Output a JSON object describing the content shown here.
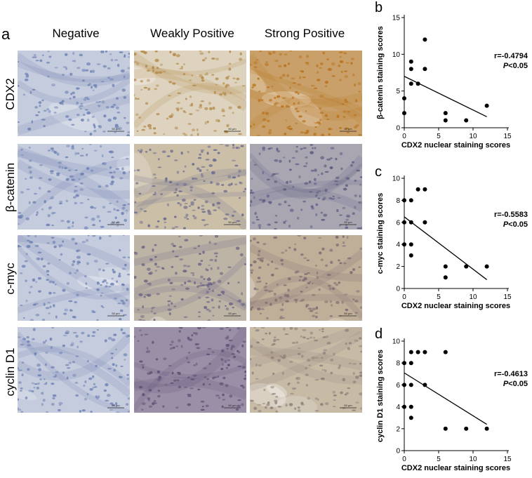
{
  "panel_a": {
    "letter": "a",
    "columns": [
      "Negative",
      "Weakly Positive",
      "Strong Positive"
    ],
    "rows": [
      "CDX2",
      "β-catenin",
      "c-myc",
      "cyclin D1"
    ],
    "scale_label": "50 μm",
    "colors": {
      "negative_bg": "#c5ccdd",
      "negative_nuc": "#6e82b4",
      "cdx2_weak_bg": "#ddd3bf",
      "cdx2_weak_nuc": "#b58a4a",
      "cdx2_strong_bg": "#c9a06a",
      "cdx2_strong_nuc": "#b9741d",
      "bcat_weak_bg": "#cbbfa8",
      "bcat_weak_nuc": "#6a6a90",
      "bcat_strong_bg": "#a9a6b2",
      "bcat_strong_nuc": "#5f5d82",
      "cmyc_weak_bg": "#beb4a6",
      "cmyc_weak_nuc": "#6a6484",
      "cmyc_strong_bg": "#bfae98",
      "cmyc_strong_nuc": "#7a6a70",
      "cyc_weak_bg": "#9a8fa6",
      "cyc_weak_nuc": "#5c4f74",
      "cyc_strong_bg": "#c7bba6",
      "cyc_strong_nuc": "#8e7f7a"
    }
  },
  "chart_data": [
    {
      "type": "scatter",
      "letter": "b",
      "xlabel": "CDX2 nuclear staining scores",
      "ylabel": "β-catenin staining scores",
      "xlim": [
        0,
        15
      ],
      "ylim": [
        0,
        15
      ],
      "xticks": [
        0,
        5,
        10,
        15
      ],
      "yticks": [
        0,
        5,
        10,
        15
      ],
      "points": [
        [
          0,
          4
        ],
        [
          0,
          2
        ],
        [
          1,
          9
        ],
        [
          1,
          8
        ],
        [
          1,
          6
        ],
        [
          2,
          6
        ],
        [
          3,
          12
        ],
        [
          3,
          8
        ],
        [
          6,
          2
        ],
        [
          6,
          1
        ],
        [
          9,
          1
        ],
        [
          12,
          3
        ]
      ],
      "fit_line": [
        [
          0,
          7.0
        ],
        [
          12,
          1.5
        ]
      ],
      "r_text": "r=-0.4794",
      "p_prefix": "P",
      "p_rest": "<0.05"
    },
    {
      "type": "scatter",
      "letter": "c",
      "xlabel": "CDX2 nuclear staining scores",
      "ylabel": "c-myc staining scores",
      "xlim": [
        0,
        15
      ],
      "ylim": [
        0,
        10
      ],
      "xticks": [
        0,
        5,
        10,
        15
      ],
      "yticks": [
        0,
        2,
        4,
        6,
        8,
        10
      ],
      "points": [
        [
          0,
          8
        ],
        [
          0,
          6
        ],
        [
          0,
          4
        ],
        [
          1,
          8
        ],
        [
          1,
          6
        ],
        [
          1,
          4
        ],
        [
          1,
          3
        ],
        [
          2,
          9
        ],
        [
          3,
          9
        ],
        [
          3,
          6
        ],
        [
          6,
          2
        ],
        [
          6,
          1
        ],
        [
          9,
          2
        ],
        [
          12,
          2
        ]
      ],
      "fit_line": [
        [
          0,
          6.5
        ],
        [
          12,
          0.8
        ]
      ],
      "r_text": "r=-0.5583",
      "p_prefix": "P",
      "p_rest": "<0.05"
    },
    {
      "type": "scatter",
      "letter": "d",
      "xlabel": "CDX2 nuclear staining scores",
      "ylabel": "cyclin D1 staining scores",
      "xlim": [
        0,
        15
      ],
      "ylim": [
        0,
        10
      ],
      "xticks": [
        0,
        5,
        10,
        15
      ],
      "yticks": [
        0,
        2,
        4,
        6,
        8,
        10
      ],
      "points": [
        [
          0,
          8
        ],
        [
          0,
          6
        ],
        [
          0,
          4
        ],
        [
          1,
          9
        ],
        [
          1,
          8
        ],
        [
          1,
          6
        ],
        [
          1,
          4
        ],
        [
          1,
          3
        ],
        [
          2,
          9
        ],
        [
          3,
          9
        ],
        [
          3,
          6
        ],
        [
          6,
          9
        ],
        [
          6,
          2
        ],
        [
          9,
          2
        ],
        [
          12,
          2
        ]
      ],
      "fit_line": [
        [
          0,
          7.1
        ],
        [
          12,
          2.4
        ]
      ],
      "r_text": "r=-0.4613",
      "p_prefix": "P",
      "p_rest": "<0.05"
    }
  ]
}
